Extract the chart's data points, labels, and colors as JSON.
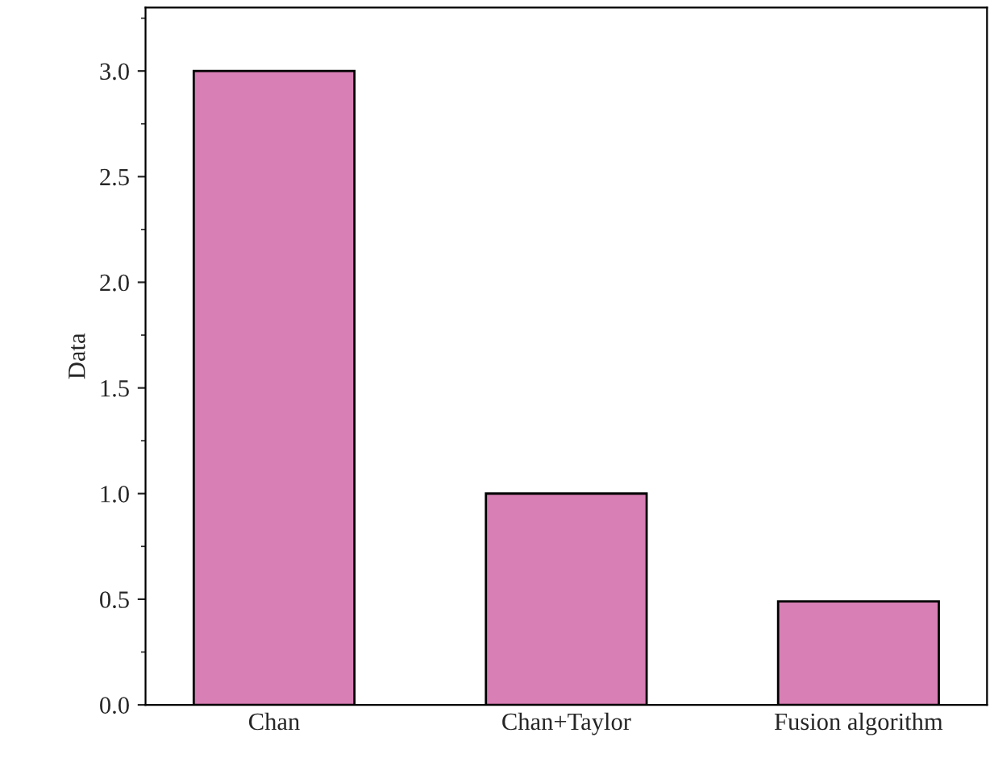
{
  "chart_data": {
    "type": "bar",
    "ylabel": "Data",
    "categories": [
      "Chan",
      "Chan+Taylor",
      "Fusion algorithm"
    ],
    "values": [
      3.0,
      1.0,
      0.49
    ],
    "color": "#d87fb5",
    "ylim": [
      0,
      3.3
    ],
    "yticks": [
      {
        "value": 0,
        "label": "0.0"
      },
      0.5,
      {
        "value": 1,
        "label": "1.0"
      },
      1.5,
      {
        "value": 2,
        "label": "2.0"
      },
      2.5,
      {
        "value": 3,
        "label": "3.0"
      }
    ],
    "grid": false
  }
}
